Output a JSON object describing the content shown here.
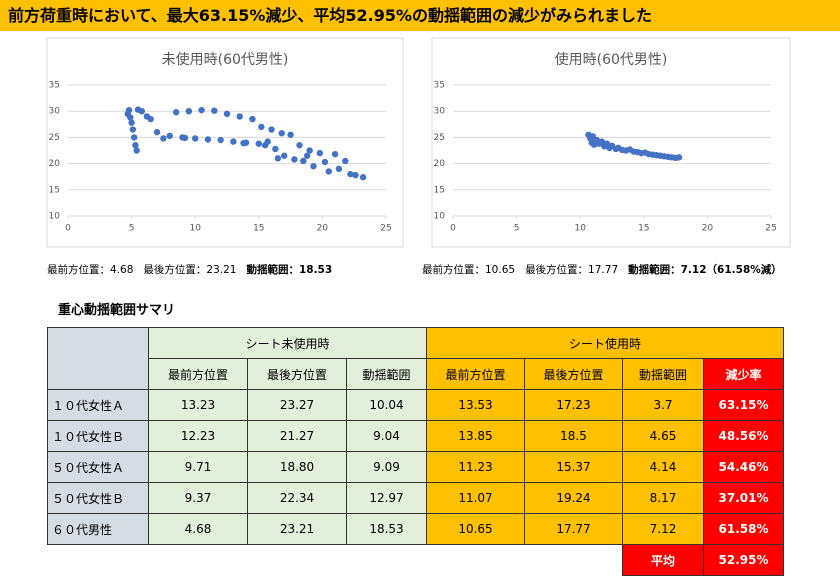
{
  "title": "前方荷重時において、最大63.15%減少、平均52.95%の動揺範囲の減少がみられました",
  "charts": [
    {
      "type": "scatter",
      "title": "未使用時(60代男性)",
      "color": "#4472c4",
      "grid": true,
      "xlim": [
        0,
        25
      ],
      "ylim": [
        10,
        35
      ],
      "xticks": [
        0,
        5,
        10,
        15,
        20,
        25
      ],
      "yticks": [
        10,
        15,
        20,
        25,
        30,
        35
      ],
      "x": [
        4.7,
        4.8,
        4.9,
        5.0,
        5.1,
        5.2,
        5.3,
        5.4,
        5.5,
        5.8,
        6.2,
        6.5,
        7.0,
        7.5,
        8.0,
        8.5,
        9.0,
        9.5,
        10.0,
        10.5,
        11.0,
        11.5,
        12.0,
        12.5,
        13.0,
        13.5,
        14.0,
        14.5,
        15.0,
        15.2,
        15.5,
        16.0,
        16.3,
        16.8,
        17.0,
        17.5,
        17.8,
        18.2,
        18.5,
        19.0,
        19.3,
        19.8,
        20.2,
        20.5,
        21.0,
        21.3,
        21.8,
        22.2,
        22.6,
        23.2,
        9.2,
        13.8,
        15.7,
        16.5,
        18.8
      ],
      "values": [
        29.5,
        30.2,
        28.8,
        27.8,
        26.5,
        25.0,
        23.5,
        22.5,
        30.3,
        30.0,
        29.0,
        28.5,
        26.0,
        24.8,
        25.3,
        29.8,
        25.0,
        30.0,
        24.8,
        30.2,
        24.6,
        30.1,
        24.5,
        29.5,
        24.2,
        29.0,
        24.0,
        28.5,
        23.8,
        27.0,
        23.5,
        26.5,
        22.8,
        25.8,
        21.5,
        25.5,
        20.8,
        23.5,
        20.5,
        22.5,
        19.5,
        22.0,
        20.3,
        18.5,
        21.8,
        19.0,
        20.5,
        18.0,
        17.8,
        17.4,
        24.9,
        23.9,
        24.2,
        21.0,
        21.5
      ]
    },
    {
      "type": "scatter",
      "title": "使用時(60代男性)",
      "color": "#4472c4",
      "grid": true,
      "xlim": [
        0,
        25
      ],
      "ylim": [
        10,
        35
      ],
      "xticks": [
        0,
        5,
        10,
        15,
        20,
        25
      ],
      "yticks": [
        10,
        15,
        20,
        25,
        30,
        35
      ],
      "x": [
        10.65,
        10.8,
        10.9,
        11.0,
        11.1,
        11.3,
        11.5,
        11.7,
        11.9,
        12.1,
        12.3,
        12.5,
        12.8,
        13.0,
        13.3,
        13.6,
        13.9,
        14.2,
        14.5,
        14.8,
        15.1,
        15.4,
        15.7,
        16.0,
        16.3,
        16.6,
        16.9,
        17.2,
        17.5,
        17.77
      ],
      "values": [
        25.5,
        24.8,
        24.0,
        25.2,
        23.6,
        24.5,
        23.8,
        24.2,
        23.3,
        23.8,
        23.0,
        23.4,
        22.8,
        23.0,
        22.6,
        22.5,
        22.7,
        22.3,
        22.2,
        22.0,
        22.1,
        21.8,
        21.7,
        21.6,
        21.5,
        21.4,
        21.3,
        21.2,
        21.1,
        21.2
      ]
    }
  ],
  "captions": [
    {
      "front": "最前方位置：4.68",
      "back": "最後方位置：23.21",
      "range": "動揺範囲：18.53"
    },
    {
      "front": "最前方位置：10.65",
      "back": "最後方位置：17.77",
      "range": "動揺範囲：7.12（61.58%減）"
    }
  ],
  "table": {
    "heading": "重心動揺範囲サマリ",
    "group_headers": [
      "シート未使用時",
      "シート使用時"
    ],
    "columns": [
      "最前方位置",
      "最後方位置",
      "動揺範囲",
      "最前方位置",
      "最後方位置",
      "動揺範囲",
      "減少率"
    ],
    "rows": [
      [
        "１０代女性Ａ",
        "13.23",
        "23.27",
        "10.04",
        "13.53",
        "17.23",
        "3.7",
        "63.15%"
      ],
      [
        "１０代女性Ｂ",
        "12.23",
        "21.27",
        "9.04",
        "13.85",
        "18.5",
        "4.65",
        "48.56%"
      ],
      [
        "５０代女性Ａ",
        "9.71",
        "18.80",
        "9.09",
        "11.23",
        "15.37",
        "4.14",
        "54.46%"
      ],
      [
        "５０代女性Ｂ",
        "9.37",
        "22.34",
        "12.97",
        "11.07",
        "19.24",
        "8.17",
        "37.01%"
      ],
      [
        "６０代男性",
        "4.68",
        "23.21",
        "18.53",
        "10.65",
        "17.77",
        "7.12",
        "61.58%"
      ]
    ],
    "average": {
      "label": "平均",
      "value": "52.95%"
    }
  }
}
